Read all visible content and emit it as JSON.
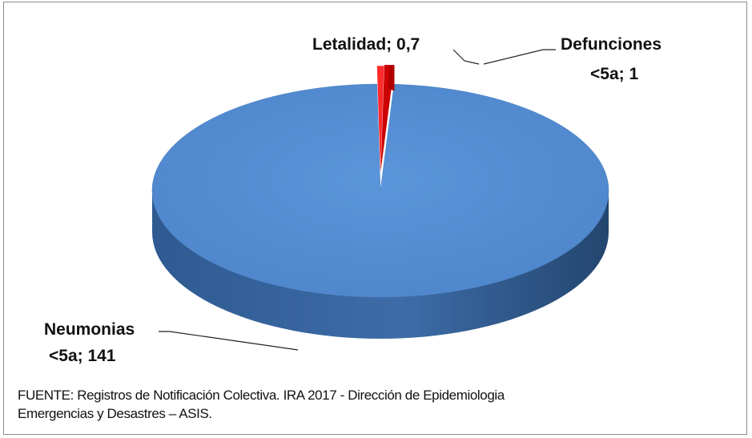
{
  "chart_data": {
    "type": "pie",
    "style": "3d",
    "slices": [
      {
        "category": "Neumonias <5a",
        "value": 141,
        "color": "#558ed5",
        "label_line1": "Neumonias",
        "label_line2": "<5a; 141"
      },
      {
        "category": "Letalidad",
        "value": 0.7,
        "color": "#ff2a2a",
        "label_line1": "Letalidad; 0,7",
        "label_line2": ""
      },
      {
        "category": "Defunciones <5a",
        "value": 1,
        "color": "#cc0000",
        "label_line1": "Defunciones",
        "label_line2": "<5a; 1"
      }
    ]
  },
  "source": {
    "line1": "FUENTE:  Registros de Notificación Colectiva. IRA 2017 - Dirección de Epidemiologia",
    "line2": "Emergencias y Desastres – ASIS."
  }
}
